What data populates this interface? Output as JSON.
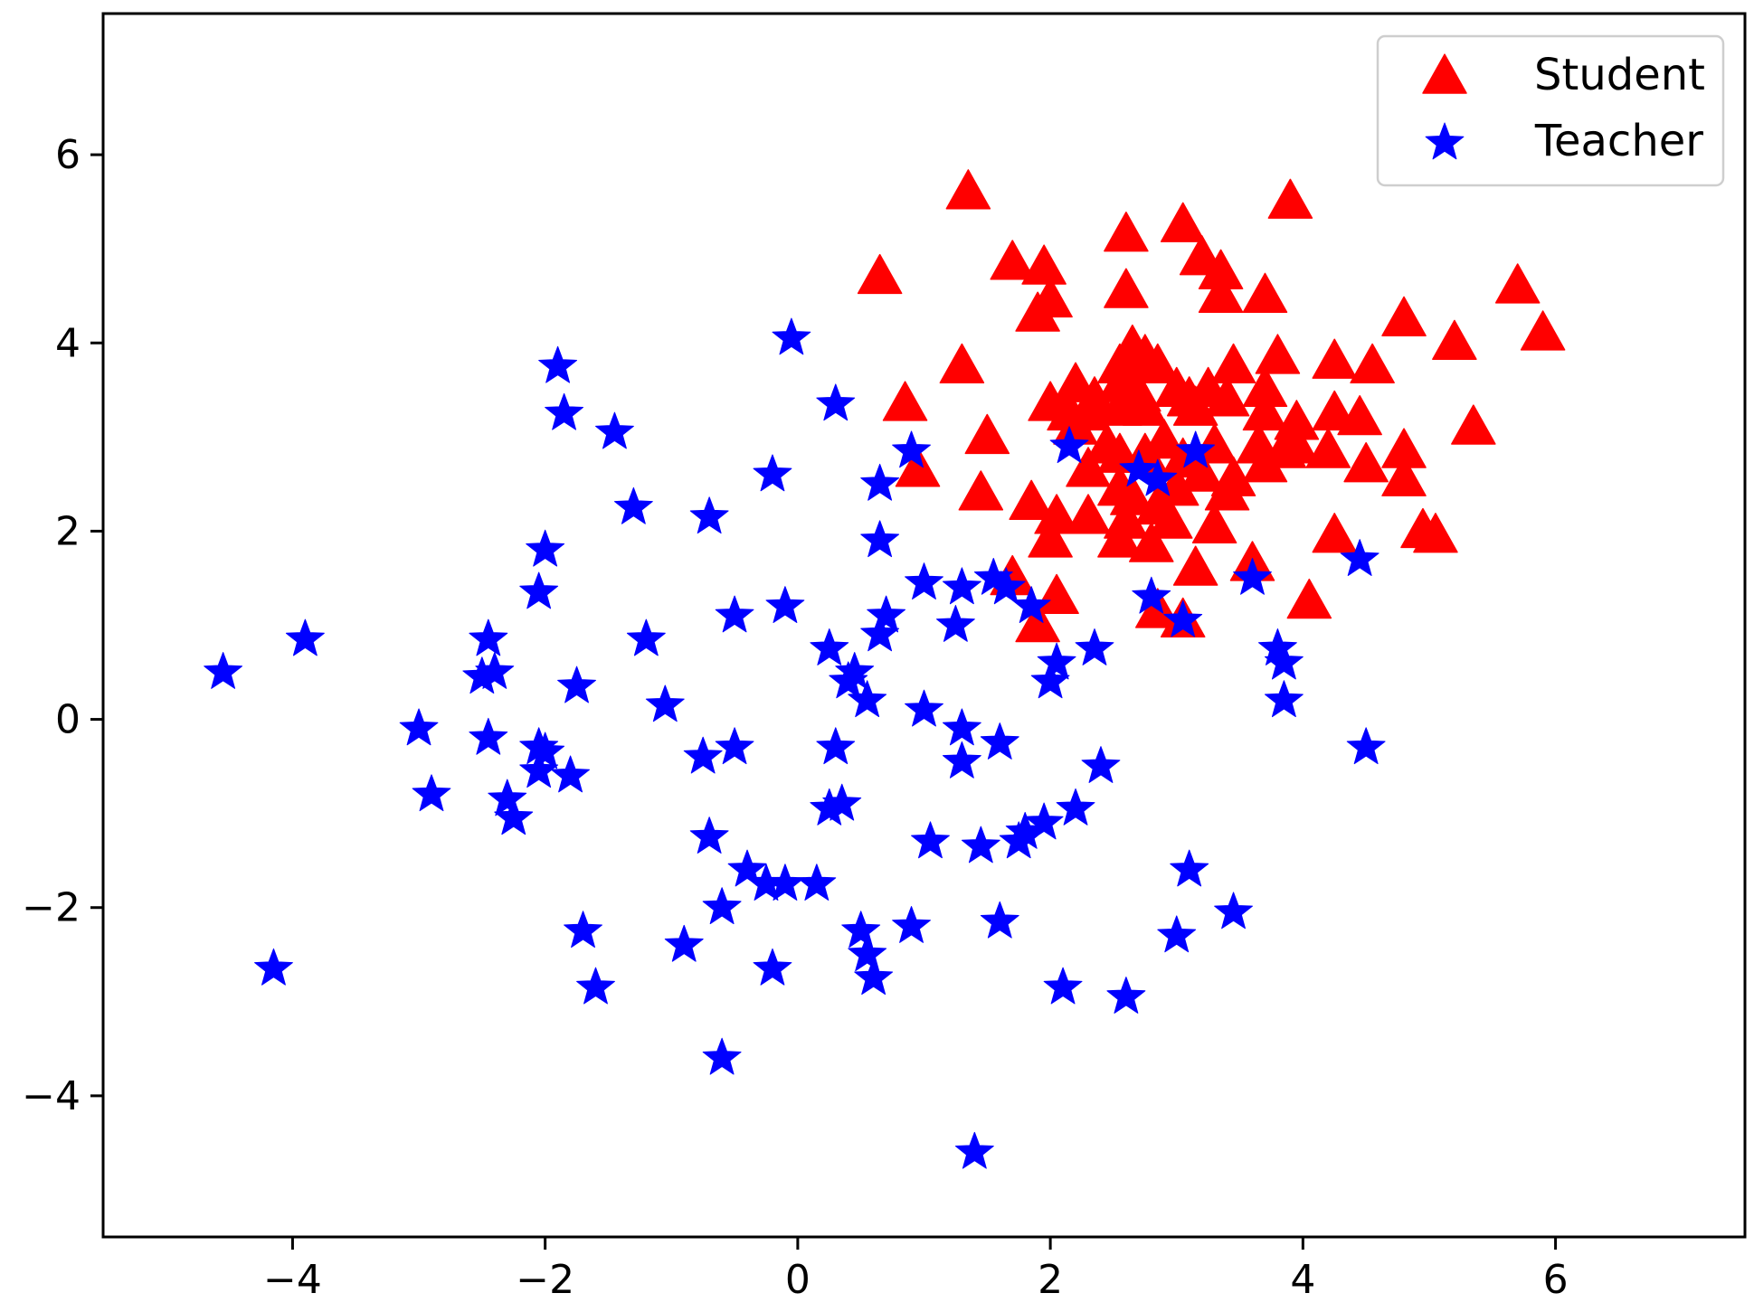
{
  "chart_data": {
    "type": "scatter",
    "title": "",
    "xlabel": "",
    "ylabel": "",
    "xlim": [
      -5.5,
      7.5
    ],
    "ylim": [
      -5.5,
      7.5
    ],
    "xticks": [
      -4,
      -2,
      0,
      2,
      4,
      6
    ],
    "yticks": [
      -4,
      -2,
      0,
      2,
      4,
      6
    ],
    "xtick_labels": [
      "−4",
      "−2",
      "0",
      "2",
      "4",
      "6"
    ],
    "ytick_labels": [
      "−4",
      "−2",
      "0",
      "2",
      "4",
      "6"
    ],
    "grid": false,
    "legend_position": "top-right",
    "series": [
      {
        "name": "Student",
        "marker": "triangle",
        "color": "#ff0000",
        "points": [
          [
            1.35,
            5.6
          ],
          [
            3.9,
            5.5
          ],
          [
            3.05,
            5.25
          ],
          [
            2.6,
            5.15
          ],
          [
            3.2,
            4.9
          ],
          [
            1.7,
            4.85
          ],
          [
            1.95,
            4.8
          ],
          [
            3.35,
            4.75
          ],
          [
            0.65,
            4.7
          ],
          [
            5.7,
            4.6
          ],
          [
            2.6,
            4.55
          ],
          [
            3.7,
            4.5
          ],
          [
            3.35,
            4.5
          ],
          [
            2.0,
            4.45
          ],
          [
            1.9,
            4.3
          ],
          [
            4.8,
            4.25
          ],
          [
            5.9,
            4.1
          ],
          [
            5.2,
            4.0
          ],
          [
            2.65,
            3.95
          ],
          [
            2.75,
            3.85
          ],
          [
            3.8,
            3.85
          ],
          [
            1.3,
            3.75
          ],
          [
            2.55,
            3.75
          ],
          [
            2.85,
            3.75
          ],
          [
            4.25,
            3.8
          ],
          [
            4.55,
            3.75
          ],
          [
            3.45,
            3.75
          ],
          [
            2.2,
            3.55
          ],
          [
            2.55,
            3.55
          ],
          [
            3.0,
            3.5
          ],
          [
            3.25,
            3.5
          ],
          [
            3.7,
            3.5
          ],
          [
            2.35,
            3.4
          ],
          [
            2.7,
            3.45
          ],
          [
            3.1,
            3.4
          ],
          [
            3.4,
            3.4
          ],
          [
            2.0,
            3.35
          ],
          [
            0.85,
            3.35
          ],
          [
            2.55,
            3.3
          ],
          [
            2.75,
            3.3
          ],
          [
            3.15,
            3.3
          ],
          [
            2.15,
            3.25
          ],
          [
            2.3,
            3.25
          ],
          [
            3.7,
            3.25
          ],
          [
            4.25,
            3.25
          ],
          [
            4.45,
            3.2
          ],
          [
            3.95,
            3.15
          ],
          [
            5.35,
            3.1
          ],
          [
            2.2,
            3.1
          ],
          [
            1.5,
            3.0
          ],
          [
            2.9,
            2.95
          ],
          [
            2.45,
            2.9
          ],
          [
            3.3,
            2.9
          ],
          [
            3.65,
            2.9
          ],
          [
            3.85,
            2.85
          ],
          [
            3.95,
            2.9
          ],
          [
            4.2,
            2.85
          ],
          [
            4.8,
            2.85
          ],
          [
            2.55,
            2.8
          ],
          [
            2.75,
            2.8
          ],
          [
            3.05,
            2.75
          ],
          [
            4.5,
            2.7
          ],
          [
            3.7,
            2.7
          ],
          [
            0.95,
            2.65
          ],
          [
            3.2,
            2.6
          ],
          [
            4.8,
            2.55
          ],
          [
            3.45,
            2.55
          ],
          [
            2.3,
            2.65
          ],
          [
            3.0,
            2.45
          ],
          [
            2.55,
            2.45
          ],
          [
            3.4,
            2.4
          ],
          [
            1.45,
            2.4
          ],
          [
            2.65,
            2.35
          ],
          [
            1.85,
            2.3
          ],
          [
            2.85,
            2.25
          ],
          [
            2.05,
            2.15
          ],
          [
            2.3,
            2.15
          ],
          [
            2.95,
            2.1
          ],
          [
            2.6,
            2.1
          ],
          [
            3.3,
            2.05
          ],
          [
            4.95,
            2.0
          ],
          [
            5.05,
            1.95
          ],
          [
            4.25,
            1.95
          ],
          [
            2.0,
            1.9
          ],
          [
            2.55,
            1.9
          ],
          [
            2.8,
            1.85
          ],
          [
            3.6,
            1.65
          ],
          [
            3.15,
            1.6
          ],
          [
            1.7,
            1.5
          ],
          [
            2.05,
            1.3
          ],
          [
            4.05,
            1.25
          ],
          [
            2.85,
            1.15
          ],
          [
            3.05,
            1.05
          ],
          [
            1.9,
            1.0
          ]
        ]
      },
      {
        "name": "Teacher",
        "marker": "star",
        "color": "#0000ff",
        "points": [
          [
            -0.05,
            4.05
          ],
          [
            -1.9,
            3.75
          ],
          [
            -1.85,
            3.25
          ],
          [
            0.3,
            3.35
          ],
          [
            -1.45,
            3.05
          ],
          [
            0.9,
            2.85
          ],
          [
            2.15,
            2.9
          ],
          [
            3.15,
            2.85
          ],
          [
            2.7,
            2.65
          ],
          [
            2.85,
            2.55
          ],
          [
            -0.2,
            2.6
          ],
          [
            0.65,
            2.5
          ],
          [
            -1.3,
            2.25
          ],
          [
            -0.7,
            2.15
          ],
          [
            0.65,
            1.9
          ],
          [
            -2.0,
            1.8
          ],
          [
            4.45,
            1.7
          ],
          [
            3.6,
            1.5
          ],
          [
            1.55,
            1.5
          ],
          [
            1.65,
            1.4
          ],
          [
            -2.05,
            1.35
          ],
          [
            1.0,
            1.45
          ],
          [
            1.3,
            1.4
          ],
          [
            2.8,
            1.3
          ],
          [
            1.85,
            1.2
          ],
          [
            -0.1,
            1.2
          ],
          [
            -0.5,
            1.1
          ],
          [
            0.7,
            1.1
          ],
          [
            3.05,
            1.05
          ],
          [
            1.25,
            1.0
          ],
          [
            0.65,
            0.9
          ],
          [
            -3.9,
            0.85
          ],
          [
            -2.45,
            0.85
          ],
          [
            -1.2,
            0.85
          ],
          [
            2.35,
            0.75
          ],
          [
            0.25,
            0.75
          ],
          [
            3.8,
            0.75
          ],
          [
            3.85,
            0.6
          ],
          [
            2.05,
            0.6
          ],
          [
            0.45,
            0.5
          ],
          [
            -4.55,
            0.5
          ],
          [
            -2.5,
            0.45
          ],
          [
            -2.4,
            0.5
          ],
          [
            2.0,
            0.4
          ],
          [
            0.4,
            0.4
          ],
          [
            -1.75,
            0.35
          ],
          [
            0.55,
            0.2
          ],
          [
            3.85,
            0.2
          ],
          [
            -1.05,
            0.15
          ],
          [
            1.0,
            0.1
          ],
          [
            -3.0,
            -0.1
          ],
          [
            1.3,
            -0.1
          ],
          [
            -2.45,
            -0.2
          ],
          [
            1.6,
            -0.25
          ],
          [
            -2.05,
            -0.3
          ],
          [
            -2.0,
            -0.35
          ],
          [
            0.3,
            -0.3
          ],
          [
            -0.5,
            -0.3
          ],
          [
            4.5,
            -0.3
          ],
          [
            -0.75,
            -0.4
          ],
          [
            1.3,
            -0.45
          ],
          [
            2.4,
            -0.5
          ],
          [
            -2.05,
            -0.55
          ],
          [
            -1.8,
            -0.6
          ],
          [
            -2.9,
            -0.8
          ],
          [
            -2.3,
            -0.85
          ],
          [
            0.35,
            -0.9
          ],
          [
            0.25,
            -0.95
          ],
          [
            2.2,
            -0.95
          ],
          [
            -2.25,
            -1.05
          ],
          [
            1.95,
            -1.1
          ],
          [
            1.8,
            -1.2
          ],
          [
            -0.7,
            -1.25
          ],
          [
            1.75,
            -1.3
          ],
          [
            1.05,
            -1.3
          ],
          [
            1.45,
            -1.35
          ],
          [
            -0.4,
            -1.6
          ],
          [
            3.1,
            -1.6
          ],
          [
            -0.25,
            -1.75
          ],
          [
            -0.1,
            -1.75
          ],
          [
            0.15,
            -1.75
          ],
          [
            -0.6,
            -2.0
          ],
          [
            3.45,
            -2.05
          ],
          [
            1.6,
            -2.15
          ],
          [
            0.9,
            -2.2
          ],
          [
            -1.7,
            -2.25
          ],
          [
            0.5,
            -2.25
          ],
          [
            3.0,
            -2.3
          ],
          [
            -0.9,
            -2.4
          ],
          [
            0.55,
            -2.5
          ],
          [
            -4.15,
            -2.65
          ],
          [
            -0.2,
            -2.65
          ],
          [
            0.6,
            -2.75
          ],
          [
            -1.6,
            -2.85
          ],
          [
            2.1,
            -2.85
          ],
          [
            2.6,
            -2.95
          ],
          [
            -0.6,
            -3.6
          ],
          [
            1.4,
            -4.6
          ]
        ]
      }
    ]
  }
}
